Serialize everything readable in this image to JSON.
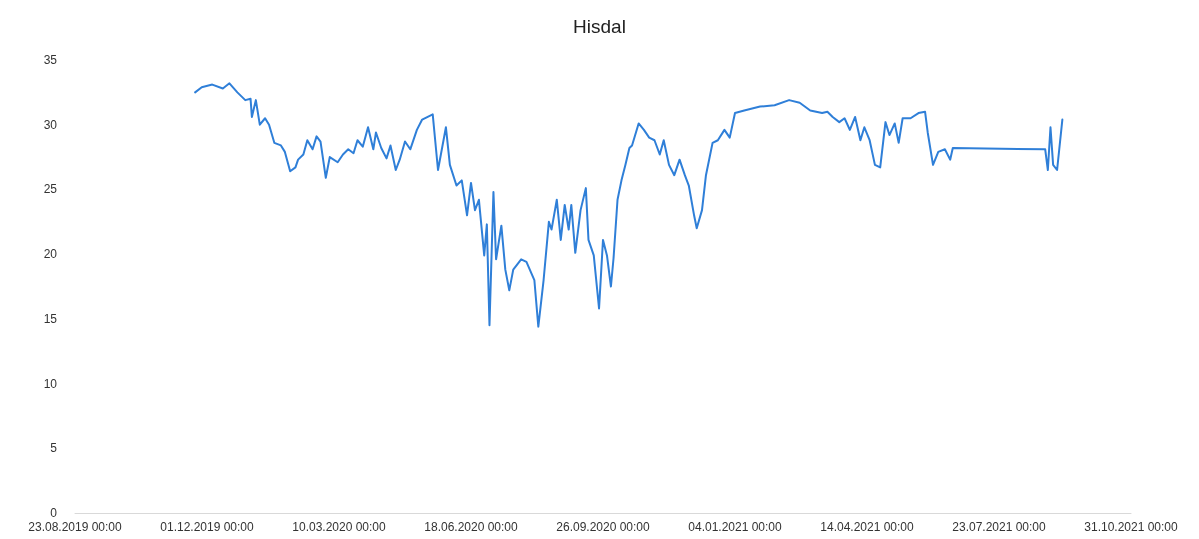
{
  "chart_data": {
    "type": "line",
    "title": "Hisdal",
    "xlim": [
      "2019-08-23",
      "2021-10-31"
    ],
    "xticks": [
      {
        "value": "2019-08-23",
        "label": "23.08.2019 00:00"
      },
      {
        "value": "2019-12-01",
        "label": "01.12.2019 00:00"
      },
      {
        "value": "2020-03-10",
        "label": "10.03.2020 00:00"
      },
      {
        "value": "2020-06-18",
        "label": "18.06.2020 00:00"
      },
      {
        "value": "2020-09-26",
        "label": "26.09.2020 00:00"
      },
      {
        "value": "2021-01-04",
        "label": "04.01.2021 00:00"
      },
      {
        "value": "2021-04-14",
        "label": "14.04.2021 00:00"
      },
      {
        "value": "2021-07-23",
        "label": "23.07.2021 00:00"
      },
      {
        "value": "2021-10-31",
        "label": "31.10.2021 00:00"
      }
    ],
    "ylim": [
      0,
      35
    ],
    "yticks": [
      0,
      5,
      10,
      15,
      20,
      25,
      30,
      35
    ],
    "grid": false,
    "marker": "none",
    "line_style": "solid",
    "series": [
      {
        "color": "#2f7fd8",
        "x": [
          "2019-11-22",
          "2019-11-27",
          "2019-12-05",
          "2019-12-13",
          "2019-12-18",
          "2019-12-24",
          "2019-12-30",
          "2020-01-03",
          "2020-01-04",
          "2020-01-07",
          "2020-01-10",
          "2020-01-14",
          "2020-01-17",
          "2020-01-21",
          "2020-01-26",
          "2020-01-29",
          "2020-02-02",
          "2020-02-06",
          "2020-02-08",
          "2020-02-12",
          "2020-02-15",
          "2020-02-19",
          "2020-02-22",
          "2020-02-25",
          "2020-02-29",
          "2020-03-03",
          "2020-03-09",
          "2020-03-13",
          "2020-03-17",
          "2020-03-21",
          "2020-03-24",
          "2020-03-28",
          "2020-04-01",
          "2020-04-05",
          "2020-04-07",
          "2020-04-11",
          "2020-04-15",
          "2020-04-18",
          "2020-04-22",
          "2020-04-25",
          "2020-04-29",
          "2020-05-03",
          "2020-05-08",
          "2020-05-12",
          "2020-05-20",
          "2020-05-24",
          "2020-05-28",
          "2020-05-30",
          "2020-06-02",
          "2020-06-07",
          "2020-06-11",
          "2020-06-15",
          "2020-06-18",
          "2020-06-21",
          "2020-06-24",
          "2020-06-28",
          "2020-06-30",
          "2020-07-02",
          "2020-07-05",
          "2020-07-07",
          "2020-07-11",
          "2020-07-14",
          "2020-07-17",
          "2020-07-20",
          "2020-07-26",
          "2020-07-30",
          "2020-08-05",
          "2020-08-08",
          "2020-08-12",
          "2020-08-16",
          "2020-08-18",
          "2020-08-22",
          "2020-08-25",
          "2020-08-28",
          "2020-08-31",
          "2020-09-02",
          "2020-09-05",
          "2020-09-09",
          "2020-09-13",
          "2020-09-15",
          "2020-09-19",
          "2020-09-23",
          "2020-09-26",
          "2020-09-29",
          "2020-10-02",
          "2020-10-04",
          "2020-10-07",
          "2020-10-10",
          "2020-10-13",
          "2020-10-16",
          "2020-10-18",
          "2020-10-23",
          "2020-10-27",
          "2020-10-31",
          "2020-11-04",
          "2020-11-08",
          "2020-11-11",
          "2020-11-15",
          "2020-11-19",
          "2020-11-23",
          "2020-11-27",
          "2020-11-30",
          "2020-12-04",
          "2020-12-06",
          "2020-12-10",
          "2020-12-13",
          "2020-12-18",
          "2020-12-22",
          "2020-12-27",
          "2020-12-31",
          "2021-01-04",
          "2021-01-11",
          "2021-01-23",
          "2021-02-03",
          "2021-02-14",
          "2021-02-22",
          "2021-03-02",
          "2021-03-11",
          "2021-03-15",
          "2021-03-19",
          "2021-03-24",
          "2021-03-28",
          "2021-04-01",
          "2021-04-05",
          "2021-04-09",
          "2021-04-12",
          "2021-04-16",
          "2021-04-20",
          "2021-04-24",
          "2021-04-28",
          "2021-05-01",
          "2021-05-05",
          "2021-05-08",
          "2021-05-11",
          "2021-05-17",
          "2021-05-23",
          "2021-05-28",
          "2021-05-30",
          "2021-06-03",
          "2021-06-07",
          "2021-06-12",
          "2021-06-16",
          "2021-06-18",
          "2021-08-27",
          "2021-08-29",
          "2021-08-31",
          "2021-09-02",
          "2021-09-05",
          "2021-09-09"
        ],
        "values": [
          32.5,
          32.9,
          33.1,
          32.8,
          33.2,
          32.5,
          31.9,
          32.0,
          30.6,
          31.9,
          30.0,
          30.5,
          30.0,
          28.6,
          28.4,
          27.9,
          26.4,
          26.7,
          27.3,
          27.7,
          28.8,
          28.1,
          29.1,
          28.7,
          25.9,
          27.5,
          27.1,
          27.7,
          28.1,
          27.8,
          28.8,
          28.3,
          29.8,
          28.1,
          29.4,
          28.2,
          27.4,
          28.4,
          26.5,
          27.3,
          28.7,
          28.1,
          29.6,
          30.4,
          30.8,
          26.5,
          28.7,
          29.8,
          26.9,
          25.3,
          25.7,
          23.0,
          25.5,
          23.4,
          24.2,
          19.9,
          22.3,
          14.5,
          24.8,
          19.6,
          22.2,
          18.8,
          17.2,
          18.8,
          19.6,
          19.4,
          18.0,
          14.4,
          18.0,
          22.5,
          21.9,
          24.2,
          21.1,
          23.8,
          21.9,
          23.8,
          20.1,
          23.4,
          25.1,
          21.1,
          19.9,
          15.8,
          21.1,
          19.9,
          17.5,
          19.7,
          24.2,
          25.7,
          26.9,
          28.2,
          28.4,
          30.1,
          29.6,
          29.0,
          28.8,
          27.7,
          28.8,
          26.9,
          26.1,
          27.3,
          26.1,
          25.3,
          23.0,
          22.0,
          23.4,
          26.1,
          28.6,
          28.8,
          29.6,
          29.0,
          30.9,
          31.1,
          31.4,
          31.5,
          31.9,
          31.7,
          31.1,
          30.9,
          31.0,
          30.6,
          30.2,
          30.5,
          29.6,
          30.6,
          28.8,
          29.8,
          28.8,
          26.9,
          26.7,
          30.2,
          29.2,
          30.1,
          28.6,
          30.5,
          30.5,
          30.9,
          31.0,
          29.4,
          26.9,
          27.9,
          28.1,
          27.3,
          28.2,
          28.1,
          26.5,
          29.8,
          26.9,
          26.5,
          30.4
        ]
      }
    ]
  }
}
